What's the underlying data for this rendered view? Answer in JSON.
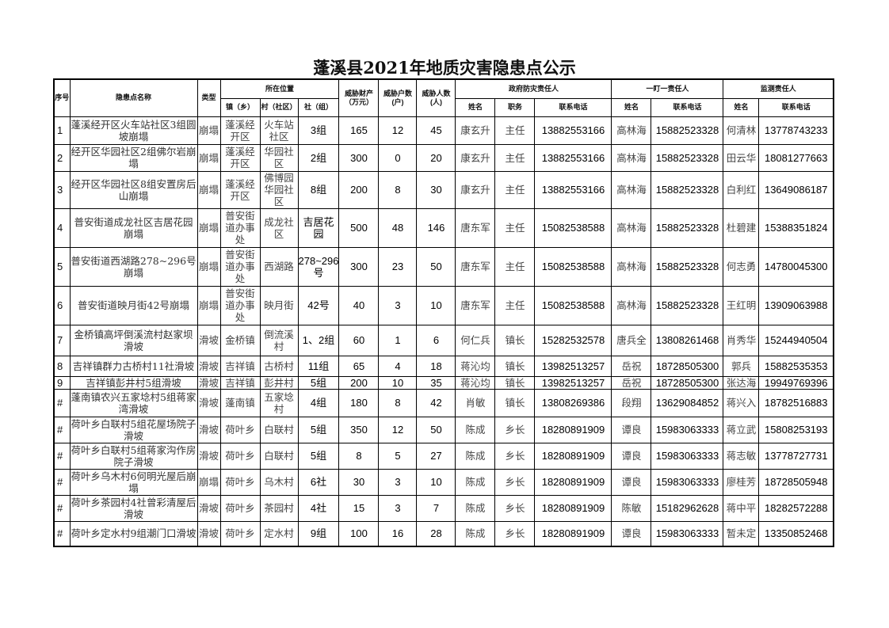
{
  "title": "蓬溪县2021年地质灾害隐患点公示",
  "headers": {
    "index": "序号",
    "name": "隐患点名称",
    "type": "类型",
    "location": "所在位置",
    "town": "镇（乡）",
    "village": "村（社区）",
    "group": "社（组）",
    "property": "威胁财产（万元）",
    "households": "威胁户数(户)",
    "people": "威胁人数(人)",
    "gov": "政府防灾责任人",
    "gov_name": "姓名",
    "gov_post": "职务",
    "gov_phone": "联系电话",
    "one": "一盯一责任人",
    "one_name": "姓名",
    "one_phone": "联系电话",
    "mon": "监测责任人",
    "mon_name": "姓名",
    "mon_phone": "联系电话"
  },
  "rows": [
    {
      "idx": "1",
      "name": "蓬溪经开区火车站社区3组圆坡崩塌",
      "type": "崩塌",
      "town": "蓬溪经开区",
      "village": "火车站社区",
      "group": "3组",
      "property": "165",
      "households": "12",
      "people": "45",
      "gov_name": "康玄升",
      "gov_post": "主任",
      "gov_phone": "13882553166",
      "one_name": "高林海",
      "one_phone": "15882523328",
      "mon_name": "何清林",
      "mon_phone": "13778743233"
    },
    {
      "idx": "2",
      "name": "经开区华园社区2组佛尔岩崩塌",
      "type": "崩塌",
      "town": "蓬溪经开区",
      "village": "华园社区",
      "group": "2组",
      "property": "300",
      "households": "0",
      "people": "20",
      "gov_name": "康玄升",
      "gov_post": "主任",
      "gov_phone": "13882553166",
      "one_name": "高林海",
      "one_phone": "15882523328",
      "mon_name": "田云华",
      "mon_phone": "18081277663"
    },
    {
      "idx": "3",
      "name": "经开区华园社区8组安置房后山崩塌",
      "type": "崩塌",
      "town": "蓬溪经开区",
      "village": "佛博园华园社区",
      "group": "8组",
      "property": "200",
      "households": "8",
      "people": "30",
      "gov_name": "康玄升",
      "gov_post": "主任",
      "gov_phone": "13882553166",
      "one_name": "高林海",
      "one_phone": "15882523328",
      "mon_name": "白利红",
      "mon_phone": "13649086187"
    },
    {
      "idx": "4",
      "name": "普安街道成龙社区吉居花园崩塌",
      "type": "崩塌",
      "town": "普安街道办事处",
      "village": "成龙社区",
      "group": "吉居花园",
      "property": "500",
      "households": "48",
      "people": "146",
      "gov_name": "唐东军",
      "gov_post": "主任",
      "gov_phone": "15082538588",
      "one_name": "高林海",
      "one_phone": "15882523328",
      "mon_name": "杜碧建",
      "mon_phone": "15388351824"
    },
    {
      "idx": "5",
      "name": "普安街道西湖路278~296号崩塌",
      "type": "崩塌",
      "town": "普安街道办事处",
      "village": "西湖路",
      "group": "278~296号",
      "property": "300",
      "households": "23",
      "people": "50",
      "gov_name": "唐东军",
      "gov_post": "主任",
      "gov_phone": "15082538588",
      "one_name": "高林海",
      "one_phone": "15882523328",
      "mon_name": "何志勇",
      "mon_phone": "14780045300"
    },
    {
      "idx": "6",
      "name": "普安街道映月街42号崩塌",
      "type": "崩塌",
      "town": "普安街道办事处",
      "village": "映月街",
      "group": "42号",
      "property": "40",
      "households": "3",
      "people": "10",
      "gov_name": "唐东军",
      "gov_post": "主任",
      "gov_phone": "15082538588",
      "one_name": "高林海",
      "one_phone": "15882523328",
      "mon_name": "王红明",
      "mon_phone": "13909063988"
    },
    {
      "idx": "7",
      "name": "金桥镇高坪倒溪流村赵家坝滑坡",
      "type": "滑坡",
      "town": "金桥镇",
      "village": "倒流溪村",
      "group": "1、2组",
      "property": "60",
      "households": "1",
      "people": "6",
      "gov_name": "何仁兵",
      "gov_post": "镇长",
      "gov_phone": "15282532578",
      "one_name": "唐兵全",
      "one_phone": "13808261468",
      "mon_name": "肖秀华",
      "mon_phone": "15244940504"
    },
    {
      "idx": "8",
      "name": "吉祥镇群力古桥村11社滑坡",
      "type": "滑坡",
      "town": "吉祥镇",
      "village": "古桥村",
      "group": "11组",
      "property": "65",
      "households": "4",
      "people": "18",
      "gov_name": "蒋沁均",
      "gov_post": "镇长",
      "gov_phone": "13982513257",
      "one_name": "岳祝",
      "one_phone": "18728505300",
      "mon_name": "郭兵",
      "mon_phone": "15882535353"
    },
    {
      "idx": "9",
      "name": "吉祥镇彭井村5组滑坡",
      "type": "滑坡",
      "town": "吉祥镇",
      "village": "彭井村",
      "group": "5组",
      "property": "200",
      "households": "10",
      "people": "35",
      "gov_name": "蒋沁均",
      "gov_post": "镇长",
      "gov_phone": "13982513257",
      "one_name": "岳祝",
      "one_phone": "18728505300",
      "mon_name": "张达海",
      "mon_phone": "19949769396"
    },
    {
      "idx": "#",
      "name": "蓬南镇农兴五家埝村5组蒋家湾滑坡",
      "type": "滑坡",
      "town": "蓬南镇",
      "village": "五家埝村",
      "group": "4组",
      "property": "180",
      "households": "8",
      "people": "42",
      "gov_name": "肖敏",
      "gov_post": "镇长",
      "gov_phone": "13808269386",
      "one_name": "段翔",
      "one_phone": "13629084852",
      "mon_name": "蒋兴入",
      "mon_phone": "18782516883"
    },
    {
      "idx": "#",
      "name": "荷叶乡白联村5组花屋场院子滑坡",
      "type": "滑坡",
      "town": "荷叶乡",
      "village": "白联村",
      "group": "5组",
      "property": "350",
      "households": "12",
      "people": "50",
      "gov_name": "陈成",
      "gov_post": "乡长",
      "gov_phone": "18280891909",
      "one_name": "谭良",
      "one_phone": "15983063333",
      "mon_name": "蒋立武",
      "mon_phone": "15808253193"
    },
    {
      "idx": "#",
      "name": "荷叶乡白联村5组蒋家沟作房院子滑坡",
      "type": "滑坡",
      "town": "荷叶乡",
      "village": "白联村",
      "group": "5组",
      "property": "8",
      "households": "5",
      "people": "27",
      "gov_name": "陈成",
      "gov_post": "乡长",
      "gov_phone": "18280891909",
      "one_name": "谭良",
      "one_phone": "15983063333",
      "mon_name": "蒋志敏",
      "mon_phone": "13778727731"
    },
    {
      "idx": "#",
      "name": "荷叶乡乌木村6何明光屋后崩塌",
      "type": "崩塌",
      "town": "荷叶乡",
      "village": "乌木村",
      "group": "6社",
      "property": "30",
      "households": "3",
      "people": "10",
      "gov_name": "陈成",
      "gov_post": "乡长",
      "gov_phone": "18280891909",
      "one_name": "谭良",
      "one_phone": "15983063333",
      "mon_name": "廖桂芳",
      "mon_phone": "18728505948"
    },
    {
      "idx": "#",
      "name": "荷叶乡茶园村4社曾彩清屋后滑坡",
      "type": "滑坡",
      "town": "荷叶乡",
      "village": "茶园村",
      "group": "4社",
      "property": "15",
      "households": "3",
      "people": "7",
      "gov_name": "陈成",
      "gov_post": "乡长",
      "gov_phone": "18280891909",
      "one_name": "陈敏",
      "one_phone": "15182962628",
      "mon_name": "蒋中平",
      "mon_phone": "18282572288"
    },
    {
      "idx": "#",
      "name": "荷叶乡定水村9组潮门口滑坡",
      "type": "滑坡",
      "town": "荷叶乡",
      "village": "定水村",
      "group": "9组",
      "property": "100",
      "households": "16",
      "people": "28",
      "gov_name": "陈成",
      "gov_post": "乡长",
      "gov_phone": "18280891909",
      "one_name": "谭良",
      "one_phone": "15983063333",
      "mon_name": "暂未定",
      "mon_phone": "13350852468"
    }
  ]
}
